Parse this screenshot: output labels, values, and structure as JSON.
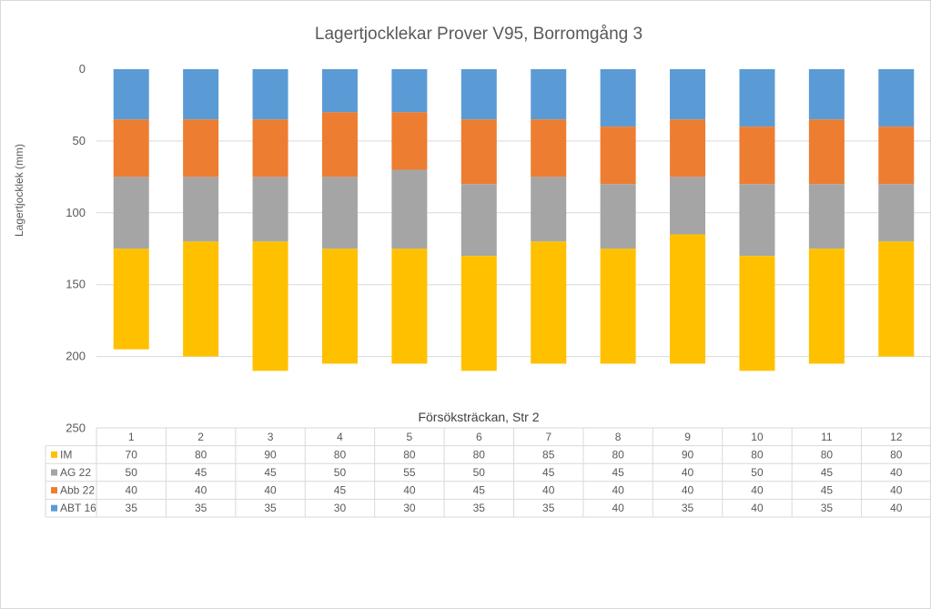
{
  "chart_data": {
    "type": "bar",
    "stacked": true,
    "y_axis_reversed": true,
    "title": "Lagertjocklekar Prover V95, Borromgång 3",
    "xlabel": "Försöksträckan, Str 2",
    "ylabel": "Lagertjocklek (mm)",
    "ylim": [
      0,
      250
    ],
    "yticks": [
      "0",
      "50",
      "100",
      "150",
      "200",
      "250"
    ],
    "grid": true,
    "legend": "data-table",
    "categories": [
      "1",
      "2",
      "3",
      "4",
      "5",
      "6",
      "7",
      "8",
      "9",
      "10",
      "11",
      "12"
    ],
    "series": [
      {
        "name": "ABT 16",
        "color": "#5b9bd5",
        "values": [
          35,
          35,
          35,
          30,
          30,
          35,
          35,
          40,
          35,
          40,
          35,
          40
        ]
      },
      {
        "name": "Abb 22",
        "color": "#ed7d31",
        "values": [
          40,
          40,
          40,
          45,
          40,
          45,
          40,
          40,
          40,
          40,
          45,
          40
        ]
      },
      {
        "name": "AG 22",
        "color": "#a5a5a5",
        "values": [
          50,
          45,
          45,
          50,
          55,
          50,
          45,
          45,
          40,
          50,
          45,
          40
        ]
      },
      {
        "name": "IM",
        "color": "#ffc000",
        "values": [
          70,
          80,
          90,
          80,
          80,
          80,
          85,
          80,
          90,
          80,
          80,
          80
        ]
      }
    ],
    "table_row_order": [
      "IM",
      "AG 22",
      "Abb 22",
      "ABT 16"
    ]
  }
}
